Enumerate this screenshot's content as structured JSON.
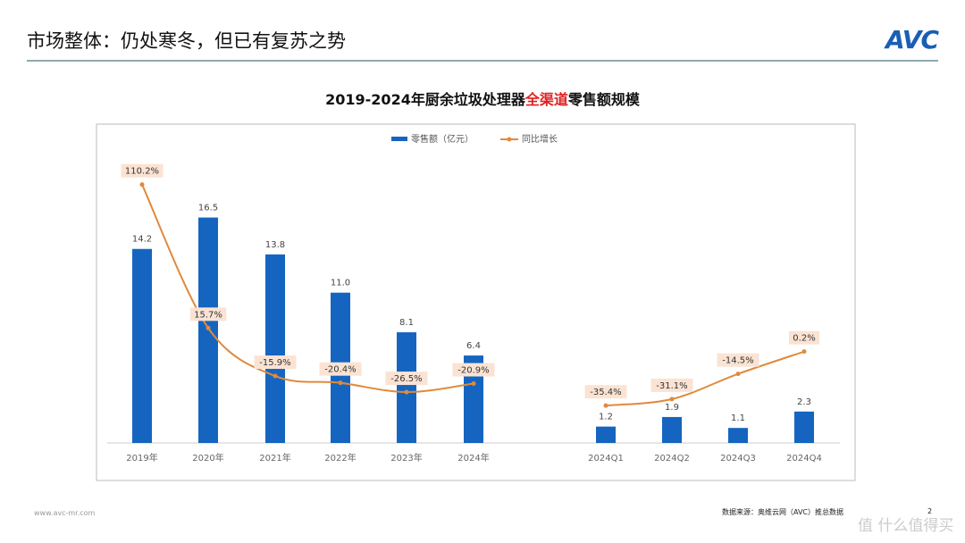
{
  "header": {
    "title": "市场整体：仍处寒冬，但已有复苏之势",
    "logo": "AVC"
  },
  "chart_data": {
    "type": "bar+line",
    "title_parts": [
      "2019-2024年厨余垃圾处理器",
      "全渠道",
      "零售额规模"
    ],
    "categories": [
      "2019年",
      "2020年",
      "2021年",
      "2022年",
      "2023年",
      "2024年",
      "2024Q1",
      "2024Q2",
      "2024Q3",
      "2024Q4"
    ],
    "series": [
      {
        "name": "零售额（亿元）",
        "type": "bar",
        "color": "#1565c0",
        "values": [
          14.2,
          16.5,
          13.8,
          11.0,
          8.1,
          6.4,
          1.2,
          1.9,
          1.1,
          2.3
        ],
        "labels": [
          "14.2",
          "16.5",
          "13.8",
          "11.0",
          "8.1",
          "6.4",
          "1.2",
          "1.9",
          "1.1",
          "2.3"
        ]
      },
      {
        "name": "同比增长",
        "type": "line",
        "color": "#e08a3c",
        "values": [
          110.2,
          15.7,
          -15.9,
          -20.4,
          -26.5,
          -20.9,
          -35.4,
          -31.1,
          -14.5,
          0.2
        ],
        "labels": [
          "110.2%",
          "15.7%",
          "-15.9%",
          "-20.4%",
          "-26.5%",
          "-20.9%",
          "-35.4%",
          "-31.1%",
          "-14.5%",
          "0.2%"
        ]
      }
    ],
    "legend": "top-center",
    "grid": false
  },
  "footer": {
    "url": "www.avc-mr.com",
    "source": "数据来源：奥维云网（AVC）推总数据",
    "page": "2",
    "watermark": "值 什么值得买"
  }
}
